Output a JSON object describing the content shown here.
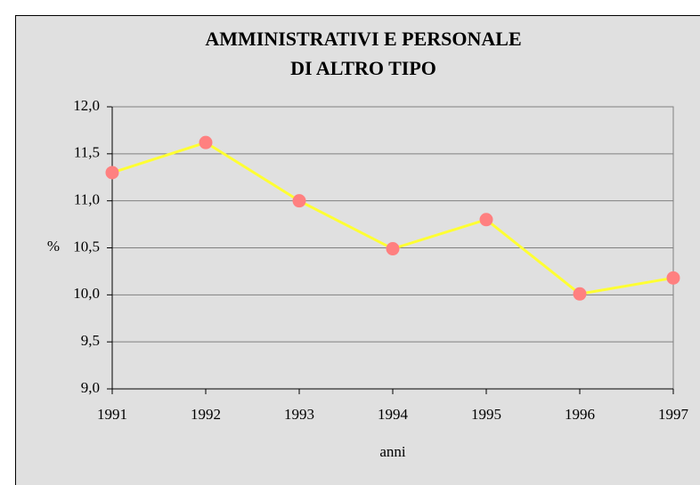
{
  "chart_data": {
    "type": "line",
    "title": [
      "AMMINISTRATIVI E PERSONALE",
      "DI ALTRO TIPO"
    ],
    "x_label": "anni",
    "y_label": "%",
    "x": [
      1991,
      1992,
      1993,
      1994,
      1995,
      1996,
      1997
    ],
    "series": [
      {
        "name": null,
        "color": "#ffff33",
        "marker_color": "#ff8080",
        "values": [
          11.3,
          11.62,
          11.0,
          10.49,
          10.8,
          10.01,
          10.18
        ]
      }
    ],
    "xlim": [
      1991,
      1997
    ],
    "xticks": [
      1991,
      1992,
      1993,
      1994,
      1995,
      1996,
      1997
    ],
    "ylim": [
      9,
      12
    ],
    "yticks": [
      {
        "value": 9,
        "label": "9,0"
      },
      {
        "value": 9.5,
        "label": "9,5"
      },
      {
        "value": 10,
        "label": "10,0"
      },
      {
        "value": 10.5,
        "label": "10,5"
      },
      {
        "value": 11,
        "label": "11,0"
      },
      {
        "value": 11.5,
        "label": "11,5"
      },
      {
        "value": 12,
        "label": "12,0"
      }
    ],
    "grid": true
  }
}
